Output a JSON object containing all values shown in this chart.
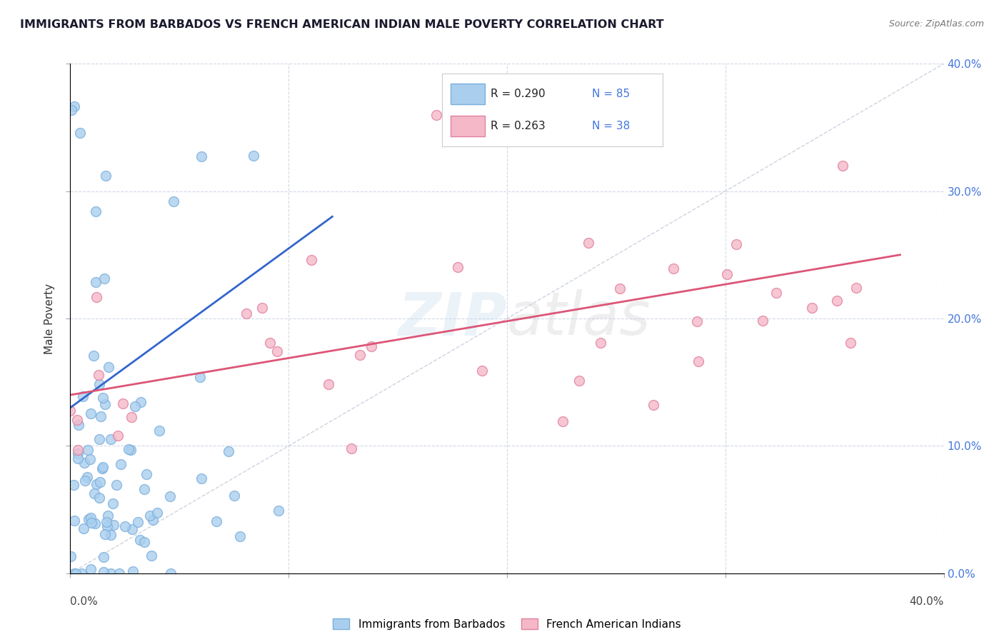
{
  "title": "IMMIGRANTS FROM BARBADOS VS FRENCH AMERICAN INDIAN MALE POVERTY CORRELATION CHART",
  "source": "Source: ZipAtlas.com",
  "ylabel": "Male Poverty",
  "xmin": 0.0,
  "xmax": 0.4,
  "ymin": 0.0,
  "ymax": 0.4,
  "series1_color": "#aacfee",
  "series1_edge": "#7aafdd",
  "series2_color": "#f5b8c8",
  "series2_edge": "#e080a0",
  "trendline1_color": "#3366cc",
  "trendline2_color": "#dd5577",
  "diagonal_color": "#c0c8d8",
  "legend1_label": "Immigrants from Barbados",
  "legend2_label": "French American Indians",
  "R1": 0.29,
  "N1": 85,
  "R2": 0.263,
  "N2": 38,
  "watermark_zip": "ZIP",
  "watermark_atlas": "atlas",
  "background_color": "#ffffff",
  "grid_color": "#d0d8e8",
  "title_color": "#1a1a2e",
  "right_axis_color": "#4477dd",
  "marker_size": 100
}
